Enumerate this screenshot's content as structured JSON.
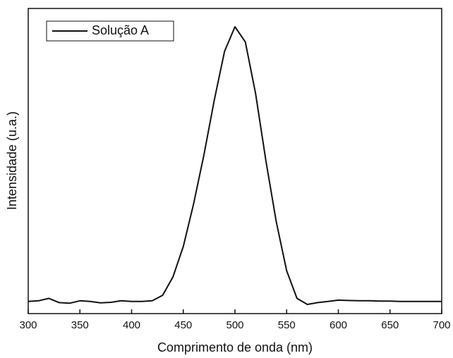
{
  "chart_data": {
    "type": "line",
    "x_label": "Comprimento de onda (nm)",
    "y_label": "Intensidade (u.a.)",
    "x": [
      300,
      310,
      320,
      330,
      340,
      350,
      360,
      370,
      380,
      390,
      400,
      410,
      420,
      430,
      440,
      450,
      460,
      470,
      480,
      490,
      500,
      510,
      520,
      530,
      540,
      550,
      560,
      570,
      580,
      590,
      600,
      610,
      620,
      630,
      640,
      650,
      660,
      670,
      680,
      690,
      700
    ],
    "series": [
      {
        "name": "Solução A",
        "color": "#111111",
        "values": [
          0.04,
          0.042,
          0.05,
          0.036,
          0.034,
          0.042,
          0.04,
          0.035,
          0.037,
          0.042,
          0.04,
          0.04,
          0.042,
          0.06,
          0.12,
          0.22,
          0.36,
          0.52,
          0.7,
          0.86,
          0.94,
          0.89,
          0.72,
          0.5,
          0.3,
          0.14,
          0.05,
          0.03,
          0.036,
          0.04,
          0.044,
          0.043,
          0.042,
          0.042,
          0.041,
          0.041,
          0.04,
          0.04,
          0.04,
          0.04,
          0.04
        ]
      }
    ],
    "xlim": [
      300,
      700
    ],
    "ylim": [
      0,
      1
    ],
    "xticks": [
      300,
      350,
      400,
      450,
      500,
      550,
      600,
      650,
      700
    ],
    "legend": "upper-left"
  }
}
